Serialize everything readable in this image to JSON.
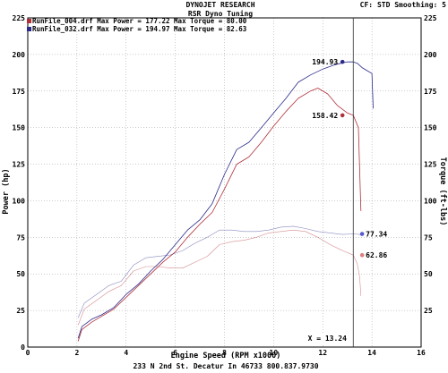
{
  "header": {
    "company": "DYNOJET RESEARCH",
    "subtitle": "RSR Dyno Tuning",
    "settings": "CF: STD  Smoothing: 5"
  },
  "footer": {
    "address": "233 N 2nd St. Decatur In 46733 800.837.9730"
  },
  "chart_data": {
    "type": "line",
    "xlabel": "Engine Speed (RPM x1000)",
    "ylabel_left": "Power (hp)",
    "ylabel_right": "Torque (ft-lbs)",
    "xlim": [
      0,
      16
    ],
    "ylim": [
      0,
      225
    ],
    "x_ticks": [
      "0",
      "2",
      "4",
      "6",
      "8",
      "10",
      "12",
      "14",
      "16"
    ],
    "y_ticks_left": [
      "0",
      "25",
      "50",
      "75",
      "100",
      "125",
      "150",
      "175",
      "200",
      "225"
    ],
    "y_ticks_right": [
      "25",
      "50",
      "75",
      "100",
      "125",
      "150",
      "175",
      "200",
      "225"
    ],
    "grid": true,
    "legend": [
      {
        "color": "#b0303a",
        "text": "RunFile_004.drf Max Power = 177.22   Max Torque = 80.00"
      },
      {
        "color": "#2a2a8a",
        "text": "RunFile_032.drf Max Power = 194.97   Max Torque = 82.63"
      }
    ],
    "cursor": {
      "x": 13.24,
      "label": "X = 13.24"
    },
    "series": [
      {
        "kind": "power",
        "color": "#2a2a8a",
        "x": [
          2.05,
          2.2,
          2.6,
          3.0,
          3.5,
          4.0,
          4.5,
          5.0,
          5.5,
          6.0,
          6.5,
          7.0,
          7.5,
          8.0,
          8.5,
          9.0,
          9.5,
          10.0,
          10.5,
          11.0,
          11.5,
          12.0,
          12.5,
          13.0,
          13.24,
          13.4,
          13.6,
          13.8,
          14.0,
          14.05
        ],
        "values": [
          6,
          14,
          19,
          22,
          27,
          36,
          43,
          52,
          60,
          70,
          80,
          87,
          98,
          118,
          135,
          140,
          150,
          160,
          170,
          181,
          186,
          190,
          193,
          195,
          194.93,
          194,
          191,
          189,
          187,
          163
        ]
      },
      {
        "kind": "power",
        "color": "#b0303a",
        "x": [
          2.05,
          2.2,
          2.6,
          3.0,
          3.5,
          4.0,
          4.5,
          5.0,
          5.5,
          6.0,
          6.5,
          7.0,
          7.5,
          8.0,
          8.5,
          9.0,
          9.5,
          10.0,
          10.5,
          11.0,
          11.5,
          11.8,
          12.2,
          12.6,
          13.0,
          13.24,
          13.45,
          13.55
        ],
        "values": [
          4,
          12,
          17,
          21,
          26,
          34,
          42,
          50,
          58,
          65,
          75,
          84,
          92,
          108,
          125,
          130,
          140,
          151,
          161,
          170,
          175,
          177,
          173,
          165,
          160,
          158.42,
          150,
          93
        ]
      },
      {
        "kind": "torque",
        "color": "#2a2a8a",
        "x": [
          2.05,
          2.3,
          2.8,
          3.3,
          3.8,
          4.3,
          4.8,
          5.3,
          5.8,
          6.3,
          6.8,
          7.3,
          7.8,
          8.3,
          8.8,
          9.3,
          9.8,
          10.3,
          10.8,
          11.3,
          11.8,
          12.3,
          12.8,
          13.24,
          13.5,
          13.6
        ],
        "values": [
          20,
          30,
          36,
          42,
          45,
          56,
          61,
          62,
          63,
          66,
          71,
          75,
          80,
          80,
          79,
          79,
          80,
          82,
          82.6,
          81,
          79,
          78,
          77,
          77.34,
          77,
          76
        ]
      },
      {
        "kind": "torque",
        "color": "#b0303a",
        "x": [
          2.05,
          2.3,
          2.8,
          3.3,
          3.8,
          4.3,
          4.8,
          5.3,
          5.8,
          6.3,
          6.8,
          7.3,
          7.8,
          8.3,
          8.8,
          9.3,
          9.8,
          10.3,
          10.8,
          11.3,
          11.8,
          12.3,
          12.8,
          13.24,
          13.4,
          13.5,
          13.55
        ],
        "values": [
          15,
          26,
          32,
          38,
          42,
          52,
          55,
          55,
          54,
          54,
          58,
          62,
          70,
          72,
          73,
          75,
          78,
          79,
          80,
          79,
          75,
          70,
          66,
          62.86,
          57,
          48,
          35
        ]
      }
    ],
    "markers": [
      {
        "x": 12.8,
        "y": 194.93,
        "color": "#2a2a8a",
        "label": "194.93"
      },
      {
        "x": 12.8,
        "y": 158.42,
        "color": "#b0303a",
        "label": "158.42"
      },
      {
        "x": 13.6,
        "y": 77.34,
        "color": "#5a5acf",
        "label": "77.34"
      },
      {
        "x": 13.6,
        "y": 62.86,
        "color": "#e07f7f",
        "label": "62.86"
      }
    ]
  }
}
